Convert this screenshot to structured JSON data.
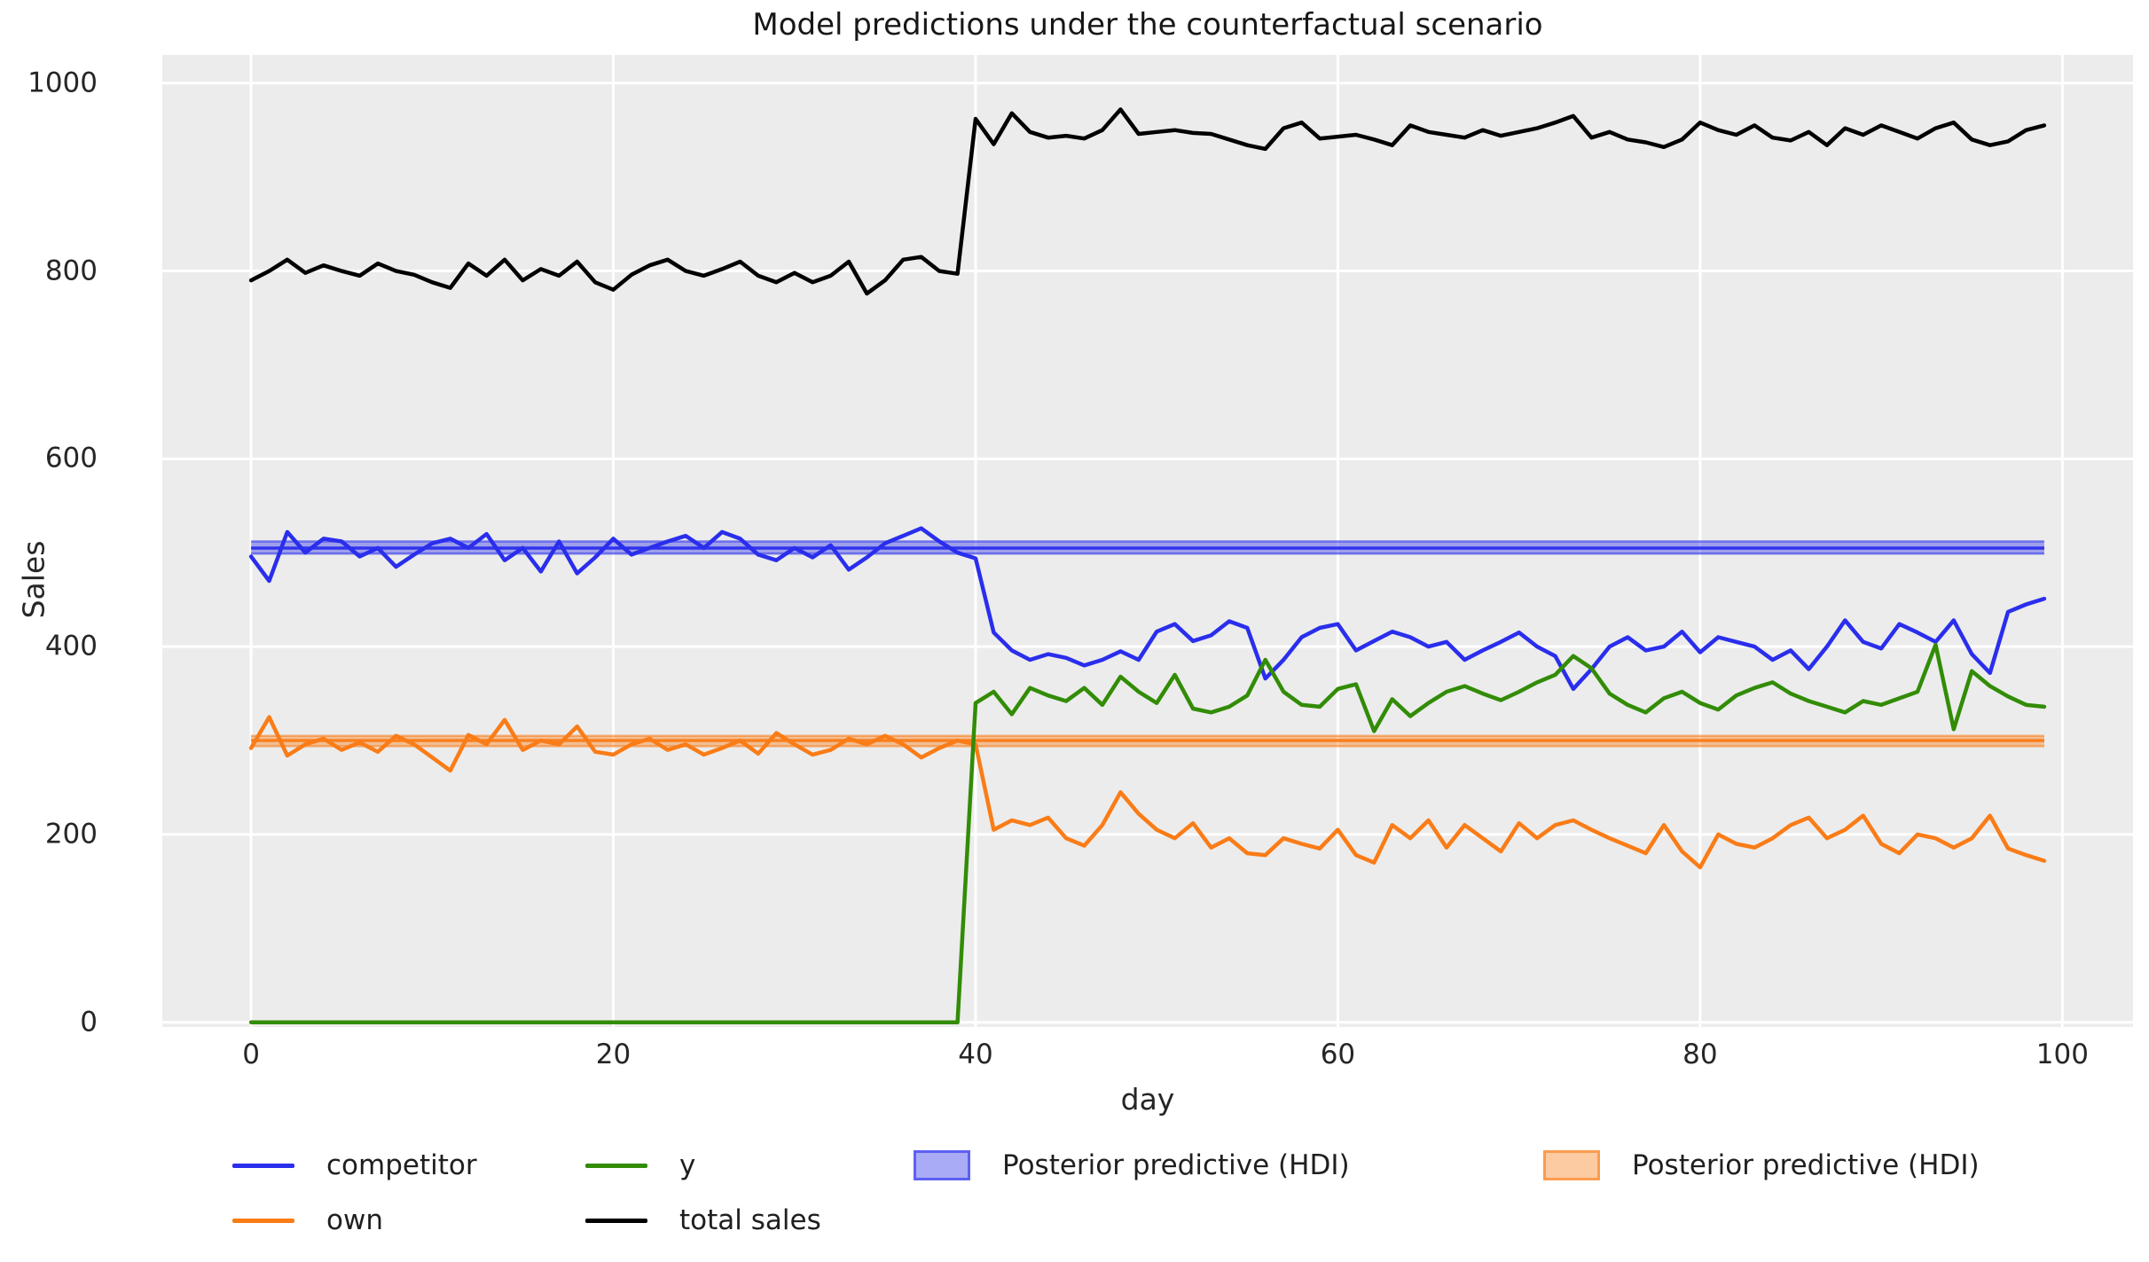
{
  "chart_data": {
    "type": "line",
    "title": "Model predictions under the counterfactual scenario",
    "xlabel": "day",
    "ylabel": "Sales",
    "xlim": [
      -4.9,
      103.9
    ],
    "ylim": [
      -5,
      1030
    ],
    "xticks": [
      0,
      20,
      40,
      60,
      80,
      100
    ],
    "yticks": [
      0,
      200,
      400,
      600,
      800,
      1000
    ],
    "grid": true,
    "legend_position": "below",
    "plot_bg": "#ececec",
    "grid_color": "#ffffff",
    "text_color": "#262626",
    "x": [
      0,
      1,
      2,
      3,
      4,
      5,
      6,
      7,
      8,
      9,
      10,
      11,
      12,
      13,
      14,
      15,
      16,
      17,
      18,
      19,
      20,
      21,
      22,
      23,
      24,
      25,
      26,
      27,
      28,
      29,
      30,
      31,
      32,
      33,
      34,
      35,
      36,
      37,
      38,
      39,
      40,
      41,
      42,
      43,
      44,
      45,
      46,
      47,
      48,
      49,
      50,
      51,
      52,
      53,
      54,
      55,
      56,
      57,
      58,
      59,
      60,
      61,
      62,
      63,
      64,
      65,
      66,
      67,
      68,
      69,
      70,
      71,
      72,
      73,
      74,
      75,
      76,
      77,
      78,
      79,
      80,
      81,
      82,
      83,
      84,
      85,
      86,
      87,
      88,
      89,
      90,
      91,
      92,
      93,
      94,
      95,
      96,
      97,
      98,
      99
    ],
    "series": [
      {
        "name": "competitor",
        "color": "#2a2eec",
        "values": [
          496,
          470,
          522,
          500,
          515,
          512,
          496,
          505,
          485,
          498,
          510,
          515,
          505,
          520,
          492,
          505,
          480,
          512,
          478,
          495,
          515,
          498,
          505,
          512,
          518,
          505,
          522,
          515,
          498,
          492,
          505,
          495,
          508,
          482,
          495,
          510,
          518,
          526,
          512,
          500,
          494,
          415,
          396,
          386,
          392,
          388,
          380,
          386,
          395,
          386,
          416,
          424,
          406,
          412,
          427,
          420,
          366,
          386,
          410,
          420,
          424,
          396,
          406,
          416,
          410,
          400,
          405,
          386,
          396,
          405,
          415,
          400,
          390,
          355,
          376,
          400,
          410,
          396,
          400,
          416,
          394,
          410,
          405,
          400,
          386,
          396,
          376,
          400,
          428,
          405,
          398,
          424,
          415,
          405,
          428,
          392,
          372,
          437,
          445,
          451
        ]
      },
      {
        "name": "own",
        "color": "#fa7c17",
        "values": [
          292,
          325,
          284,
          296,
          302,
          290,
          298,
          288,
          305,
          296,
          282,
          268,
          306,
          296,
          322,
          290,
          300,
          296,
          315,
          288,
          285,
          296,
          302,
          290,
          296,
          285,
          292,
          300,
          286,
          308,
          296,
          285,
          290,
          302,
          296,
          305,
          296,
          282,
          292,
          300,
          296,
          205,
          215,
          210,
          218,
          196,
          188,
          210,
          245,
          222,
          205,
          196,
          212,
          186,
          196,
          180,
          178,
          196,
          190,
          185,
          205,
          178,
          170,
          210,
          196,
          215,
          186,
          210,
          196,
          182,
          212,
          196,
          210,
          215,
          205,
          196,
          188,
          180,
          210,
          182,
          165,
          200,
          190,
          186,
          196,
          210,
          218,
          196,
          205,
          220,
          190,
          180,
          200,
          196,
          186,
          196,
          220,
          185,
          178,
          172
        ]
      },
      {
        "name": "y",
        "color": "#328c06",
        "values": [
          0,
          0,
          0,
          0,
          0,
          0,
          0,
          0,
          0,
          0,
          0,
          0,
          0,
          0,
          0,
          0,
          0,
          0,
          0,
          0,
          0,
          0,
          0,
          0,
          0,
          0,
          0,
          0,
          0,
          0,
          0,
          0,
          0,
          0,
          0,
          0,
          0,
          0,
          0,
          0,
          340,
          352,
          328,
          356,
          348,
          342,
          356,
          338,
          368,
          352,
          340,
          370,
          334,
          330,
          336,
          348,
          386,
          352,
          338,
          336,
          355,
          360,
          310,
          344,
          326,
          340,
          352,
          358,
          350,
          343,
          352,
          362,
          370,
          390,
          377,
          350,
          338,
          330,
          345,
          352,
          340,
          333,
          348,
          356,
          362,
          350,
          342,
          336,
          330,
          342,
          338,
          345,
          352,
          402,
          312,
          374,
          358,
          347,
          338,
          336
        ]
      },
      {
        "name": "total sales",
        "color": "#000000",
        "values": [
          790,
          800,
          812,
          798,
          806,
          800,
          795,
          808,
          800,
          796,
          788,
          782,
          808,
          795,
          812,
          790,
          802,
          795,
          810,
          788,
          780,
          796,
          806,
          812,
          800,
          795,
          802,
          810,
          795,
          788,
          798,
          788,
          795,
          810,
          776,
          790,
          812,
          815,
          800,
          797,
          962,
          935,
          968,
          948,
          942,
          944,
          941,
          950,
          972,
          946,
          948,
          950,
          947,
          946,
          940,
          934,
          930,
          952,
          958,
          941,
          943,
          945,
          940,
          934,
          955,
          948,
          945,
          942,
          950,
          944,
          948,
          952,
          958,
          965,
          942,
          948,
          940,
          937,
          932,
          940,
          958,
          950,
          945,
          955,
          942,
          939,
          948,
          934,
          952,
          945,
          955,
          948,
          941,
          952,
          958,
          940,
          934,
          938,
          950,
          955
        ]
      }
    ],
    "hdi_bands": [
      {
        "name": "Posterior predictive (HDI)",
        "color": "#2a2eec",
        "lo": 499,
        "hi": 512,
        "mean": 505,
        "x_start": 0,
        "x_end": 99
      },
      {
        "name": "Posterior predictive (HDI)",
        "color": "#fa7c17",
        "lo": 294,
        "hi": 305,
        "mean": 300,
        "x_start": 0,
        "x_end": 99
      }
    ],
    "legend": {
      "entries": [
        {
          "label": "competitor",
          "type": "line",
          "color": "#2a2eec"
        },
        {
          "label": "own",
          "type": "line",
          "color": "#fa7c17"
        },
        {
          "label": "y",
          "type": "line",
          "color": "#328c06"
        },
        {
          "label": "total sales",
          "type": "line",
          "color": "#000000"
        },
        {
          "label": "Posterior predictive (HDI)",
          "type": "patch",
          "color": "#2a2eec"
        },
        {
          "label": "Posterior predictive (HDI)",
          "type": "patch",
          "color": "#fa7c17"
        }
      ]
    }
  }
}
